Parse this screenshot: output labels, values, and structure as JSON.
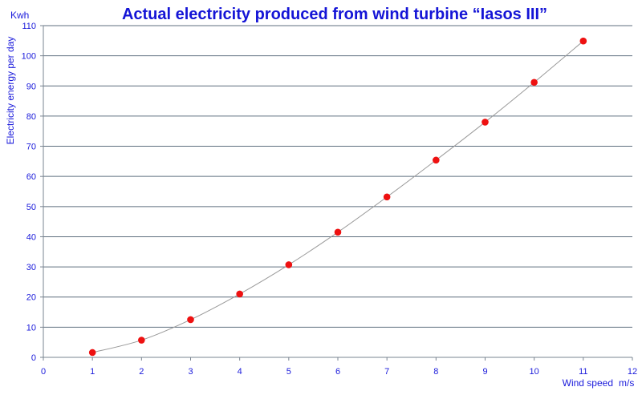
{
  "chart_data": {
    "type": "scatter",
    "title": "Actual electricity produced from wind turbine “Iasos III”",
    "xlabel": "Wind speed",
    "xunit": "m/s",
    "ylabel": "Electricity energy per day",
    "yunit": "Kwh",
    "xlim": [
      0,
      12
    ],
    "ylim": [
      0,
      110
    ],
    "xticks": [
      0,
      1,
      2,
      3,
      4,
      5,
      6,
      7,
      8,
      9,
      10,
      11,
      12
    ],
    "yticks": [
      0,
      10,
      20,
      30,
      40,
      50,
      60,
      70,
      80,
      90,
      100,
      110
    ],
    "grid": "horizontal",
    "trendline": "smooth",
    "series": [
      {
        "x": [
          1,
          2,
          3,
          4,
          5,
          6,
          7,
          8,
          9,
          10,
          11
        ],
        "y": [
          1.6,
          5.7,
          12.5,
          21.0,
          30.7,
          41.5,
          53.2,
          65.4,
          78.0,
          91.2,
          104.9
        ]
      }
    ],
    "colors": {
      "text": "#1a1adb",
      "title": "#1414d6",
      "grid": "#5f6f7f",
      "axis": "#7a8490",
      "trend": "#9a9a9a",
      "marker": "#ee1111"
    }
  }
}
